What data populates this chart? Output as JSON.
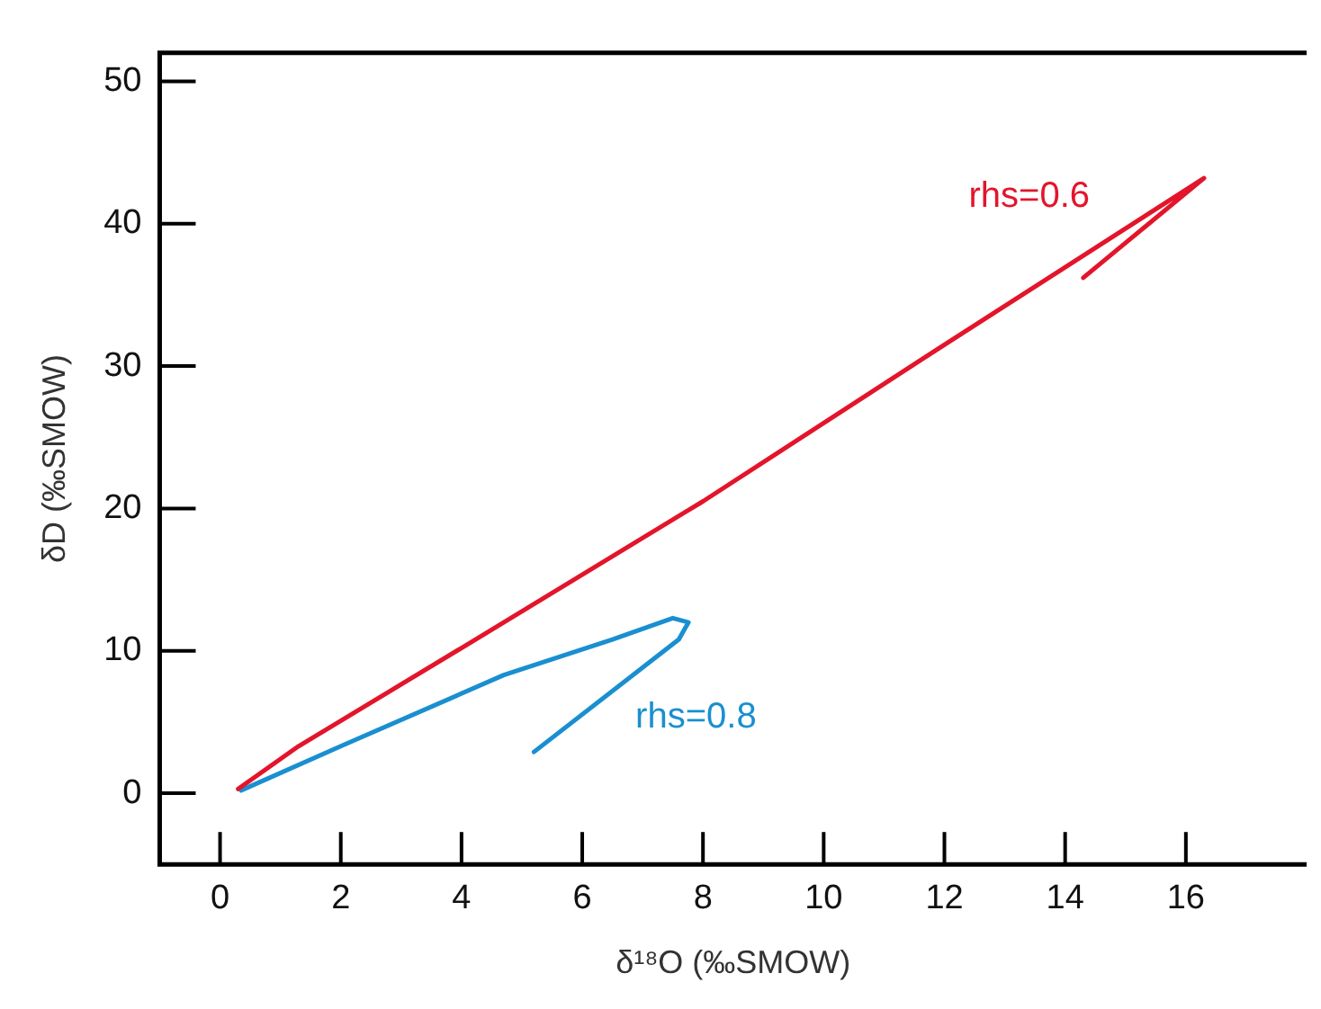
{
  "chart_data": {
    "type": "line",
    "xlabel": "δ¹⁸O (‰SMOW)",
    "ylabel": "δD (‰SMOW)",
    "xlim": [
      -1,
      18
    ],
    "ylim": [
      -5,
      52
    ],
    "xticks": [
      0,
      2,
      4,
      6,
      8,
      10,
      12,
      14,
      16
    ],
    "yticks": [
      0,
      10,
      20,
      30,
      40,
      50
    ],
    "marker": "none",
    "line_style": "solid",
    "series": [
      {
        "name": "rhs=0.6",
        "color": "#e3152b",
        "x": [
          0.3,
          1.3,
          4,
          8,
          12,
          16.3,
          14.3
        ],
        "values": [
          0.3,
          3.3,
          10.2,
          20.5,
          31.5,
          43.2,
          36.2
        ]
      },
      {
        "name": "rhs=0.8",
        "color": "#1a8fd0",
        "x": [
          0.35,
          2,
          4.7,
          6.5,
          7.5,
          7.76,
          7.6,
          5.2
        ],
        "values": [
          0.2,
          3.3,
          8.3,
          10.8,
          12.3,
          12.0,
          10.8,
          2.9
        ]
      }
    ]
  }
}
